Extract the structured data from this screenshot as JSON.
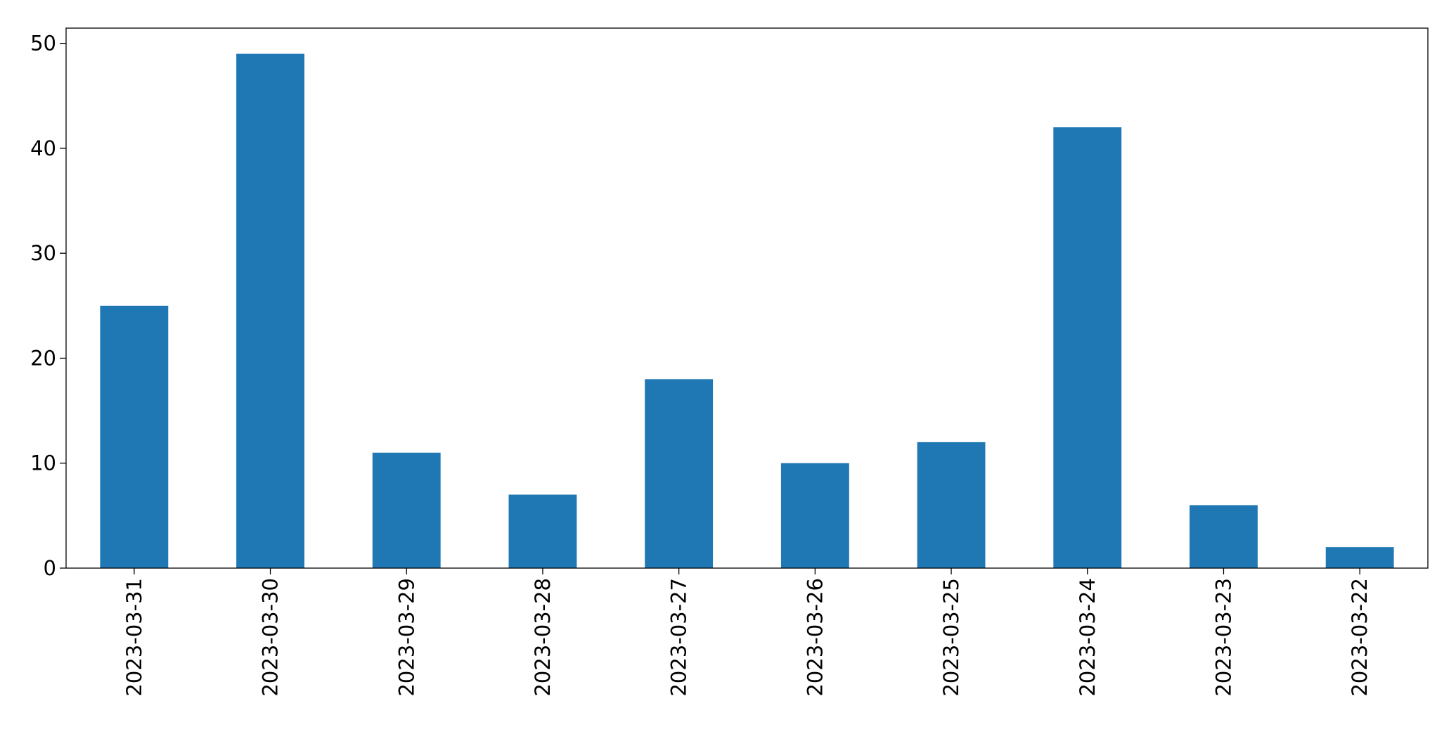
{
  "chart_data": {
    "type": "bar",
    "categories": [
      "2023-03-31",
      "2023-03-30",
      "2023-03-29",
      "2023-03-28",
      "2023-03-27",
      "2023-03-26",
      "2023-03-25",
      "2023-03-24",
      "2023-03-23",
      "2023-03-22"
    ],
    "values": [
      25,
      49,
      11,
      7,
      18,
      10,
      12,
      42,
      6,
      2
    ],
    "color": "#1f77b4",
    "ylim": [
      0,
      51.45
    ],
    "yticks": [
      0,
      10,
      20,
      30,
      40,
      50
    ],
    "grid": false
  }
}
